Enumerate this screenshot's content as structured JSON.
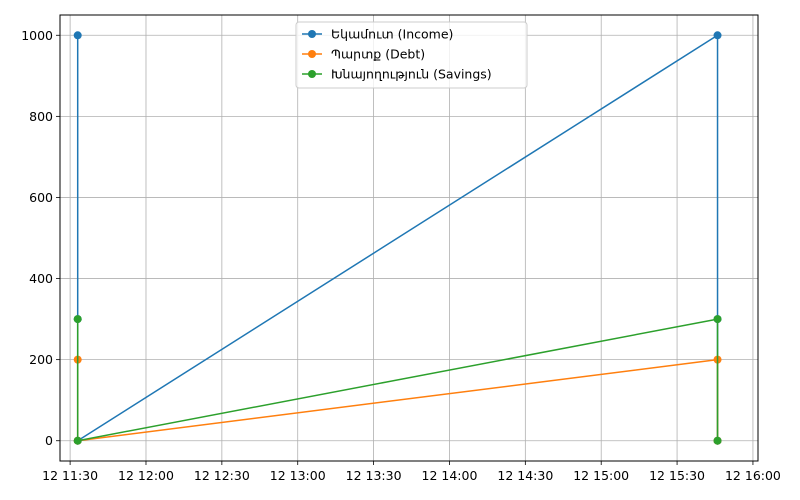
{
  "chart_data": {
    "type": "line",
    "title": "",
    "xlabel": "",
    "ylabel": "",
    "grid": true,
    "legend_position": "upper-center",
    "xlim": [
      "12 11:26",
      "12 16:02"
    ],
    "ylim": [
      -50,
      1050
    ],
    "x_ticks": [
      "12 11:30",
      "12 12:00",
      "12 12:30",
      "12 13:00",
      "12 13:30",
      "12 14:00",
      "12 14:30",
      "12 15:00",
      "12 15:30",
      "12 16:00"
    ],
    "y_ticks": [
      "0",
      "200",
      "400",
      "600",
      "800",
      "1000"
    ],
    "series": [
      {
        "name": "Եկամուտ (Income)",
        "color": "#1f77b4",
        "x": [
          "12 11:33",
          "12 11:33",
          "12 11:33",
          "12 15:46",
          "12 15:46",
          "12 15:46"
        ],
        "y": [
          1000,
          300,
          0,
          1000,
          300,
          0
        ]
      },
      {
        "name": "Պարտք (Debt)",
        "color": "#ff7f0e",
        "x": [
          "12 11:33",
          "12 11:33",
          "12 15:46",
          "12 15:46"
        ],
        "y": [
          200,
          0,
          200,
          0
        ]
      },
      {
        "name": "Խնայողություն (Savings)",
        "color": "#2ca02c",
        "x": [
          "12 11:33",
          "12 11:33",
          "12 15:46",
          "12 15:46"
        ],
        "y": [
          300,
          0,
          300,
          0
        ]
      }
    ]
  }
}
